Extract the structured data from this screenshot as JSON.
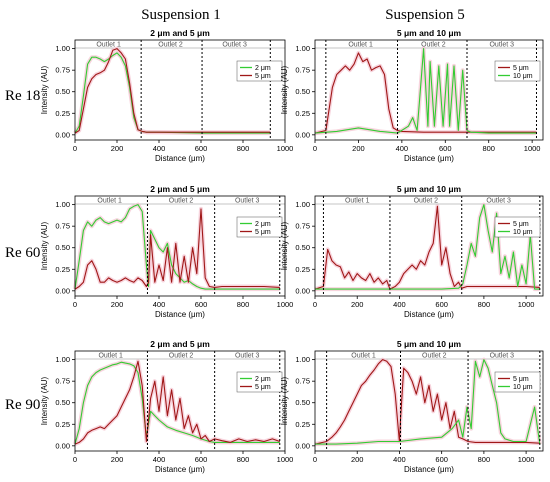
{
  "column_titles": [
    "Suspension 1",
    "Suspension 5"
  ],
  "row_labels": [
    "Re 18",
    "Re 60",
    "Re 90"
  ],
  "colors": {
    "green": "#33cc33",
    "red": "#a01818",
    "shade": "#f4c6d2",
    "axis": "#000000",
    "divider": "#000000"
  },
  "chart_data": [
    {
      "type": "line",
      "title": "2 μm and 5 μm",
      "xlabel": "Distance (μm)",
      "ylabel": "Intensity (AU)",
      "xlim": [
        0,
        1000
      ],
      "ylim": [
        -0.06,
        1.1
      ],
      "xticks": [
        "0",
        "200",
        "400",
        "600",
        "800",
        "1000"
      ],
      "yticks": [
        "0.00",
        "0.25",
        "0.50",
        "0.75",
        "1.00"
      ],
      "legend": "right",
      "outlet_labels": [
        "Outlet 1",
        "Outlet 2",
        "Outlet 3"
      ],
      "dividers": [
        315,
        605,
        930
      ],
      "outlet_centers": [
        160,
        455,
        760
      ],
      "series": [
        {
          "name": "2 μm",
          "color": "#33cc33",
          "x": [
            0,
            20,
            40,
            60,
            80,
            100,
            120,
            140,
            160,
            180,
            200,
            220,
            240,
            260,
            280,
            300,
            320,
            340,
            400,
            600,
            800,
            930
          ],
          "y": [
            0.02,
            0.1,
            0.45,
            0.82,
            0.9,
            0.9,
            0.88,
            0.85,
            0.88,
            0.92,
            0.95,
            0.9,
            0.8,
            0.55,
            0.2,
            0.06,
            0.04,
            0.03,
            0.03,
            0.02,
            0.02,
            0.02
          ]
        },
        {
          "name": "5 μm",
          "color": "#a01818",
          "x": [
            0,
            20,
            40,
            60,
            80,
            100,
            120,
            140,
            160,
            180,
            200,
            220,
            240,
            260,
            280,
            300,
            320,
            340,
            400,
            600,
            800,
            930
          ],
          "y": [
            0.02,
            0.05,
            0.3,
            0.55,
            0.65,
            0.7,
            0.72,
            0.75,
            0.85,
            0.98,
            1.0,
            0.95,
            0.88,
            0.6,
            0.25,
            0.06,
            0.04,
            0.03,
            0.03,
            0.03,
            0.03,
            0.03
          ]
        }
      ]
    },
    {
      "type": "line",
      "title": "5 μm and 10 μm",
      "xlabel": "Distance (μm)",
      "ylabel": "Intensity (AU)",
      "xlim": [
        0,
        1050
      ],
      "ylim": [
        -0.06,
        1.1
      ],
      "xticks": [
        "0",
        "200",
        "400",
        "600",
        "800",
        "1000"
      ],
      "yticks": [
        "0.00",
        "0.25",
        "0.50",
        "0.75",
        "1.00"
      ],
      "legend": "right",
      "outlet_labels": [
        "Outlet 1",
        "Outlet 2",
        "Outlet 3"
      ],
      "dividers": [
        50,
        380,
        700,
        1020
      ],
      "outlet_centers": [
        210,
        545,
        860
      ],
      "series": [
        {
          "name": "5 μm",
          "color": "#a01818",
          "x": [
            0,
            50,
            80,
            100,
            120,
            140,
            160,
            180,
            200,
            220,
            240,
            260,
            280,
            300,
            320,
            340,
            360,
            380,
            400,
            500,
            600,
            700,
            800,
            900,
            1020
          ],
          "y": [
            0.02,
            0.05,
            0.55,
            0.7,
            0.75,
            0.8,
            0.75,
            0.82,
            0.95,
            0.85,
            0.88,
            0.75,
            0.78,
            0.8,
            0.7,
            0.3,
            0.08,
            0.05,
            0.04,
            0.03,
            0.03,
            0.03,
            0.03,
            0.03,
            0.03
          ]
        },
        {
          "name": "10 μm",
          "color": "#33cc33",
          "x": [
            0,
            100,
            200,
            300,
            380,
            430,
            450,
            470,
            480,
            500,
            520,
            530,
            550,
            570,
            590,
            610,
            620,
            640,
            660,
            680,
            700,
            720,
            800,
            1020
          ],
          "y": [
            0.02,
            0.04,
            0.08,
            0.04,
            0.02,
            0.1,
            0.2,
            0.05,
            0.35,
            1.0,
            0.1,
            0.85,
            0.1,
            0.8,
            0.1,
            0.82,
            0.1,
            0.8,
            0.05,
            0.75,
            0.05,
            0.03,
            0.02,
            0.02
          ]
        }
      ]
    },
    {
      "type": "line",
      "title": "2 μm and 5 μm",
      "xlabel": "Distance (μm)",
      "ylabel": "Intensity (AU)",
      "xlim": [
        0,
        1000
      ],
      "ylim": [
        -0.06,
        1.1
      ],
      "xticks": [
        "0",
        "200",
        "400",
        "600",
        "800",
        "1000"
      ],
      "yticks": [
        "0.00",
        "0.25",
        "0.50",
        "0.75",
        "1.00"
      ],
      "legend": "right",
      "outlet_labels": [
        "Outlet 1",
        "Outlet 2",
        "Outlet 3"
      ],
      "dividers": [
        345,
        665,
        975
      ],
      "outlet_centers": [
        165,
        505,
        820
      ],
      "series": [
        {
          "name": "2 μm",
          "color": "#33cc33",
          "x": [
            0,
            20,
            40,
            60,
            80,
            100,
            120,
            140,
            160,
            180,
            200,
            220,
            240,
            260,
            280,
            300,
            320,
            340,
            350,
            360,
            380,
            400,
            420,
            440,
            460,
            480,
            500,
            520,
            540,
            560,
            580,
            600,
            620,
            640,
            665,
            700,
            800,
            900,
            975
          ],
          "y": [
            0.02,
            0.35,
            0.7,
            0.8,
            0.75,
            0.82,
            0.85,
            0.8,
            0.78,
            0.8,
            0.82,
            0.8,
            0.85,
            0.95,
            0.98,
            1.0,
            0.92,
            0.3,
            0.05,
            0.7,
            0.6,
            0.5,
            0.45,
            0.55,
            0.3,
            0.2,
            0.15,
            0.1,
            0.12,
            0.08,
            0.05,
            0.03,
            0.02,
            0.02,
            0.02,
            0.02,
            0.02,
            0.02,
            0.02
          ]
        },
        {
          "name": "5 μm",
          "color": "#a01818",
          "x": [
            0,
            20,
            40,
            60,
            80,
            100,
            120,
            140,
            160,
            180,
            200,
            220,
            240,
            260,
            280,
            300,
            320,
            340,
            350,
            360,
            380,
            400,
            420,
            440,
            460,
            480,
            500,
            520,
            540,
            560,
            580,
            600,
            620,
            640,
            665,
            700,
            800,
            900,
            975
          ],
          "y": [
            0.02,
            0.05,
            0.1,
            0.3,
            0.35,
            0.25,
            0.1,
            0.1,
            0.15,
            0.12,
            0.1,
            0.12,
            0.15,
            0.12,
            0.1,
            0.15,
            0.12,
            0.05,
            0.1,
            0.65,
            0.1,
            0.3,
            0.12,
            0.5,
            0.1,
            0.55,
            0.1,
            0.4,
            0.1,
            0.5,
            0.2,
            0.95,
            0.15,
            0.05,
            0.04,
            0.05,
            0.05,
            0.05,
            0.04
          ]
        }
      ]
    },
    {
      "type": "line",
      "title": "5 μm and 10 μm",
      "xlabel": "Distance (μm)",
      "ylabel": "Intensity (AU)",
      "xlim": [
        0,
        1080
      ],
      "ylim": [
        -0.06,
        1.1
      ],
      "xticks": [
        "0",
        "200",
        "400",
        "600",
        "800",
        "1000"
      ],
      "yticks": [
        "0.00",
        "0.25",
        "0.50",
        "0.75",
        "1.00"
      ],
      "legend": "right",
      "outlet_labels": [
        "Outlet 1",
        "Outlet 2",
        "Outlet 3"
      ],
      "dividers": [
        40,
        355,
        695,
        1065
      ],
      "outlet_centers": [
        200,
        525,
        870
      ],
      "series": [
        {
          "name": "5 μm",
          "color": "#a01818",
          "x": [
            0,
            40,
            60,
            80,
            100,
            120,
            140,
            160,
            180,
            200,
            220,
            240,
            260,
            280,
            300,
            320,
            340,
            355,
            380,
            400,
            420,
            440,
            460,
            480,
            500,
            520,
            540,
            560,
            580,
            600,
            620,
            640,
            660,
            680,
            695,
            720,
            800,
            900,
            1000,
            1065
          ],
          "y": [
            0.02,
            0.05,
            0.48,
            0.35,
            0.3,
            0.28,
            0.15,
            0.22,
            0.12,
            0.2,
            0.15,
            0.12,
            0.2,
            0.1,
            0.15,
            0.08,
            0.12,
            0.02,
            0.05,
            0.1,
            0.2,
            0.25,
            0.3,
            0.25,
            0.35,
            0.3,
            0.45,
            0.55,
            0.98,
            0.3,
            0.5,
            0.2,
            0.05,
            0.1,
            0.03,
            0.05,
            0.05,
            0.05,
            0.05,
            0.04
          ]
        },
        {
          "name": "10 μm",
          "color": "#33cc33",
          "x": [
            0,
            100,
            200,
            300,
            400,
            500,
            600,
            680,
            700,
            720,
            740,
            760,
            780,
            800,
            820,
            840,
            860,
            880,
            900,
            920,
            940,
            960,
            980,
            1000,
            1020,
            1040,
            1065
          ],
          "y": [
            0.02,
            0.02,
            0.02,
            0.02,
            0.02,
            0.02,
            0.02,
            0.03,
            0.08,
            0.3,
            0.55,
            0.4,
            0.85,
            1.0,
            0.7,
            0.45,
            0.9,
            0.2,
            0.4,
            0.15,
            0.45,
            0.05,
            0.3,
            0.08,
            0.65,
            0.02,
            0.02
          ]
        }
      ]
    },
    {
      "type": "line",
      "title": "2 μm and 5 μm",
      "xlabel": "Distance (μm)",
      "ylabel": "Intensity (AU)",
      "xlim": [
        0,
        1000
      ],
      "ylim": [
        -0.06,
        1.1
      ],
      "xticks": [
        "0",
        "200",
        "400",
        "600",
        "800",
        "1000"
      ],
      "yticks": [
        "0.00",
        "0.25",
        "0.50",
        "0.75",
        "1.00"
      ],
      "legend": "right",
      "outlet_labels": [
        "Outlet 1",
        "Outlet 2",
        "Outlet 3"
      ],
      "dividers": [
        345,
        665,
        975
      ],
      "outlet_centers": [
        170,
        505,
        820
      ],
      "series": [
        {
          "name": "2 μm",
          "color": "#33cc33",
          "x": [
            0,
            20,
            40,
            60,
            80,
            100,
            120,
            140,
            160,
            180,
            200,
            220,
            240,
            260,
            280,
            300,
            320,
            340,
            360,
            380,
            400,
            440,
            480,
            520,
            560,
            600,
            640,
            665,
            700,
            800,
            900,
            975
          ],
          "y": [
            0.02,
            0.2,
            0.5,
            0.7,
            0.8,
            0.85,
            0.88,
            0.9,
            0.92,
            0.94,
            0.95,
            0.97,
            0.96,
            0.95,
            0.93,
            0.85,
            0.55,
            0.1,
            0.4,
            0.35,
            0.3,
            0.22,
            0.18,
            0.15,
            0.12,
            0.08,
            0.05,
            0.04,
            0.04,
            0.04,
            0.04,
            0.04
          ]
        },
        {
          "name": "5 μm",
          "color": "#a01818",
          "x": [
            0,
            20,
            40,
            60,
            80,
            100,
            120,
            140,
            160,
            180,
            200,
            220,
            240,
            260,
            280,
            300,
            320,
            340,
            360,
            380,
            400,
            420,
            440,
            460,
            480,
            500,
            520,
            540,
            560,
            580,
            600,
            620,
            640,
            665,
            700,
            740,
            780,
            820,
            860,
            900,
            940,
            975
          ],
          "y": [
            0.02,
            0.04,
            0.08,
            0.15,
            0.18,
            0.2,
            0.22,
            0.2,
            0.25,
            0.3,
            0.35,
            0.45,
            0.55,
            0.65,
            0.8,
            0.98,
            0.7,
            0.05,
            0.55,
            0.75,
            0.4,
            0.8,
            0.35,
            0.65,
            0.3,
            0.55,
            0.2,
            0.35,
            0.15,
            0.25,
            0.08,
            0.12,
            0.05,
            0.08,
            0.06,
            0.04,
            0.08,
            0.05,
            0.07,
            0.05,
            0.08,
            0.05
          ]
        }
      ]
    },
    {
      "type": "line",
      "title": "5 μm and 10 μm",
      "xlabel": "Distance (μm)",
      "ylabel": "Intensity (AU)",
      "xlim": [
        0,
        1080
      ],
      "ylim": [
        -0.06,
        1.1
      ],
      "xticks": [
        "0",
        "200",
        "400",
        "600",
        "800",
        "1000"
      ],
      "yticks": [
        "0.00",
        "0.25",
        "0.50",
        "0.75",
        "1.00"
      ],
      "legend": "right",
      "outlet_labels": [
        "Outlet 1",
        "Outlet 2",
        "Outlet 3"
      ],
      "dividers": [
        55,
        405,
        725,
        1065
      ],
      "outlet_centers": [
        230,
        565,
        885
      ],
      "series": [
        {
          "name": "5 μm",
          "color": "#a01818",
          "x": [
            0,
            55,
            80,
            100,
            120,
            140,
            160,
            180,
            200,
            220,
            240,
            260,
            280,
            300,
            320,
            340,
            360,
            380,
            400,
            405,
            420,
            440,
            460,
            480,
            500,
            520,
            540,
            560,
            580,
            600,
            620,
            640,
            660,
            680,
            700,
            725,
            760,
            800,
            900,
            1000,
            1065
          ],
          "y": [
            0.02,
            0.05,
            0.1,
            0.15,
            0.22,
            0.3,
            0.4,
            0.5,
            0.6,
            0.7,
            0.75,
            0.82,
            0.88,
            0.95,
            1.0,
            0.98,
            0.92,
            0.6,
            0.05,
            0.3,
            0.9,
            0.85,
            0.75,
            0.6,
            0.8,
            0.5,
            0.7,
            0.4,
            0.6,
            0.3,
            0.5,
            0.2,
            0.4,
            0.1,
            0.08,
            0.05,
            0.04,
            0.04,
            0.04,
            0.04,
            0.03
          ]
        },
        {
          "name": "10 μm",
          "color": "#33cc33",
          "x": [
            0,
            100,
            200,
            300,
            400,
            500,
            600,
            650,
            680,
            700,
            720,
            740,
            760,
            780,
            800,
            820,
            840,
            860,
            880,
            900,
            940,
            1000,
            1040,
            1065
          ],
          "y": [
            0.02,
            0.02,
            0.03,
            0.05,
            0.05,
            0.08,
            0.1,
            0.2,
            0.3,
            0.1,
            0.45,
            0.2,
            0.98,
            0.8,
            1.0,
            0.9,
            0.7,
            0.5,
            0.15,
            0.08,
            0.05,
            0.05,
            0.45,
            0.02
          ]
        }
      ]
    }
  ]
}
